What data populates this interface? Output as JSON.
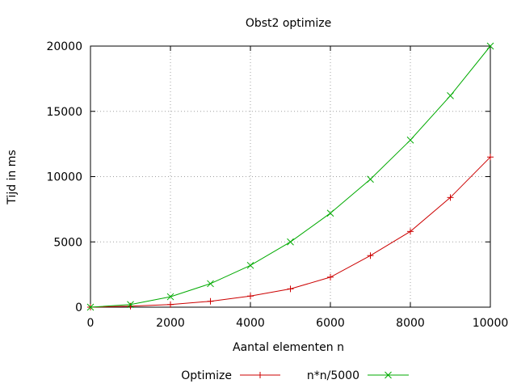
{
  "chart_data": {
    "type": "line",
    "title": "Obst2 optimize",
    "xlabel": "Aantal elementen n",
    "ylabel": "Tijd in ms",
    "xlim": [
      0,
      10000
    ],
    "ylim": [
      0,
      20000
    ],
    "xticks": [
      0,
      2000,
      4000,
      6000,
      8000,
      10000
    ],
    "yticks": [
      0,
      5000,
      10000,
      15000,
      20000
    ],
    "grid": true,
    "legend_position": "bottom",
    "series": [
      {
        "name": "Optimize",
        "color": "#cc0000",
        "marker": "plus",
        "x": [
          0,
          1000,
          2000,
          3000,
          4000,
          5000,
          6000,
          7000,
          8000,
          9000,
          10000
        ],
        "y": [
          0,
          80,
          200,
          450,
          850,
          1400,
          2300,
          3950,
          5800,
          8400,
          11500
        ]
      },
      {
        "name": "n*n/5000",
        "color": "#00aa00",
        "marker": "cross",
        "x": [
          0,
          1000,
          2000,
          3000,
          4000,
          5000,
          6000,
          7000,
          8000,
          9000,
          10000
        ],
        "y": [
          0,
          200,
          800,
          1800,
          3200,
          5000,
          7200,
          9800,
          12800,
          16200,
          20000
        ]
      }
    ]
  }
}
